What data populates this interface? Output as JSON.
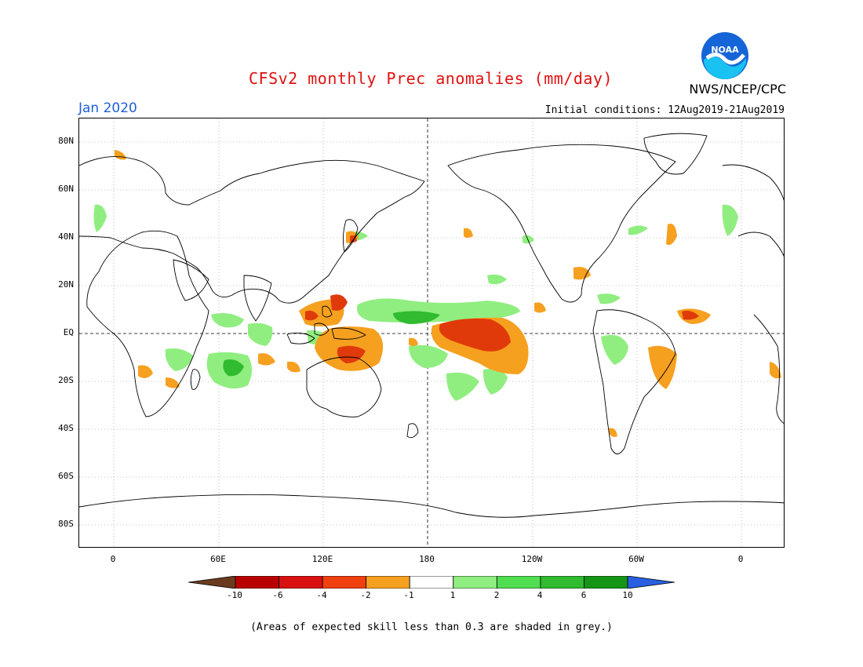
{
  "header": {
    "title": "CFSv2 monthly Prec anomalies (mm/day)",
    "agency": "NWS/NCEP/CPC",
    "logo_text": "NOAA",
    "month": "Jan 2020",
    "initial_conditions": "Initial conditions: 12Aug2019-21Aug2019"
  },
  "axes": {
    "lat_labels": [
      "80N",
      "60N",
      "40N",
      "20N",
      "EQ",
      "20S",
      "40S",
      "60S",
      "80S"
    ],
    "lat_values": [
      80,
      60,
      40,
      20,
      0,
      -20,
      -40,
      -60,
      -80
    ],
    "lon_labels": [
      "0",
      "60E",
      "120E",
      "180",
      "120W",
      "60W",
      "0"
    ],
    "lon_values": [
      0,
      60,
      120,
      180,
      240,
      300,
      360
    ]
  },
  "colorbar": {
    "labels": [
      "-10",
      "-6",
      "-4",
      "-2",
      "-1",
      "1",
      "2",
      "4",
      "6",
      "10"
    ],
    "colors": [
      "#6b3b1f",
      "#b80000",
      "#d81010",
      "#f04010",
      "#f6a020",
      "#ffffff",
      "#90ee80",
      "#50dd50",
      "#30bb30",
      "#159515",
      "#2860e0"
    ]
  },
  "footnote": "(Areas of expected skill less than 0.3 are shaded in grey.)",
  "colors": {
    "title": "#e01010",
    "month": "#1f5fd8",
    "dry_strong": "#e03a0a",
    "dry": "#f6a020",
    "wet": "#90ee80",
    "wet_strong": "#30bb30"
  }
}
